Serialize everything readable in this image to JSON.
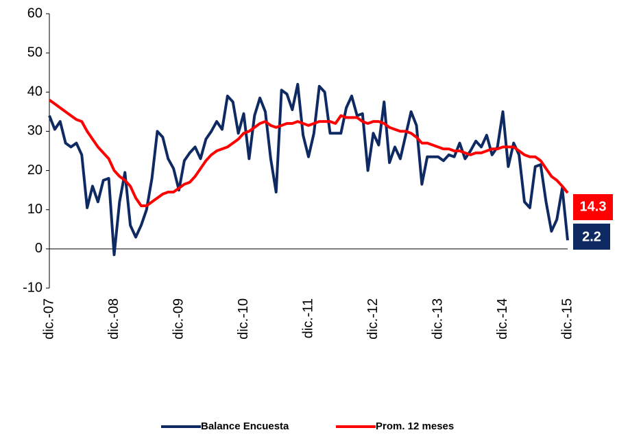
{
  "chart_data": {
    "type": "line",
    "categories": [
      "dic.-07",
      null,
      null,
      null,
      null,
      null,
      null,
      null,
      null,
      null,
      null,
      null,
      "dic.-08",
      null,
      null,
      null,
      null,
      null,
      null,
      null,
      null,
      null,
      null,
      null,
      "dic.-09",
      null,
      null,
      null,
      null,
      null,
      null,
      null,
      null,
      null,
      null,
      null,
      "dic.-10",
      null,
      null,
      null,
      null,
      null,
      null,
      null,
      null,
      null,
      null,
      null,
      "dic.-11",
      null,
      null,
      null,
      null,
      null,
      null,
      null,
      null,
      null,
      null,
      null,
      "dic.-12",
      null,
      null,
      null,
      null,
      null,
      null,
      null,
      null,
      null,
      null,
      null,
      "dic.-13",
      null,
      null,
      null,
      null,
      null,
      null,
      null,
      null,
      null,
      null,
      null,
      "dic.-14",
      null,
      null,
      null,
      null,
      null,
      null,
      null,
      null,
      null,
      null,
      null,
      "dic.-15"
    ],
    "series": [
      {
        "name": "Balance Encuesta",
        "color": "#0f2a63",
        "values": [
          34,
          30.5,
          32.5,
          27,
          26,
          27,
          24,
          10.5,
          16,
          12,
          17.5,
          18,
          -1.5,
          12,
          19.5,
          6,
          3,
          6,
          10,
          18,
          30,
          28.5,
          23,
          20.5,
          15,
          22.5,
          24.5,
          26,
          23,
          28,
          30,
          32.5,
          30.5,
          39,
          37.5,
          29.5,
          34.5,
          23,
          34,
          38.5,
          35,
          23,
          14.5,
          40.5,
          39.5,
          35.5,
          42,
          29,
          23.5,
          29.5,
          41.5,
          40,
          29.5,
          29.5,
          29.5,
          36,
          39,
          34,
          34.5,
          20,
          29.5,
          26.5,
          37.5,
          22,
          26,
          23,
          29,
          35,
          31.5,
          16.5,
          23.5,
          23.5,
          23.5,
          22.5,
          24,
          23.5,
          27,
          23,
          25,
          27.5,
          26,
          29,
          24,
          26,
          35,
          21,
          27,
          24,
          12,
          10.5,
          21,
          21.5,
          12,
          4.5,
          7.5,
          15.5,
          2.2
        ]
      },
      {
        "name": "Prom. 12 meses",
        "color": "#ff0000",
        "values": [
          38,
          37,
          36,
          35,
          34,
          33,
          32.5,
          30,
          28,
          26,
          24.5,
          23,
          20,
          18.5,
          17.5,
          16,
          13,
          11,
          11,
          12,
          13,
          14,
          14.5,
          14.5,
          15.5,
          16.5,
          17,
          18.5,
          20.5,
          22.5,
          24,
          25,
          25.5,
          26,
          27,
          28,
          29.5,
          30,
          31,
          32,
          32.5,
          31.5,
          31,
          31.5,
          32,
          32,
          32.5,
          32,
          31.5,
          32,
          32.5,
          32.5,
          32.5,
          32,
          34,
          33.5,
          33.5,
          33.5,
          32.5,
          32,
          32.5,
          32.5,
          32,
          31,
          30.5,
          30,
          30,
          29.5,
          28.5,
          27,
          27,
          26.5,
          26,
          25.5,
          25.5,
          25,
          25,
          24.5,
          24,
          24.5,
          24.5,
          25,
          25.5,
          25.5,
          26,
          26,
          26,
          25,
          24,
          23.5,
          23.5,
          22.5,
          20.5,
          18.5,
          17.5,
          16,
          14.3
        ]
      }
    ],
    "ylim": [
      -10,
      60
    ],
    "yticks": [
      -10,
      0,
      10,
      20,
      30,
      40,
      50,
      60
    ],
    "grid": false,
    "legend": "bottom"
  }
}
